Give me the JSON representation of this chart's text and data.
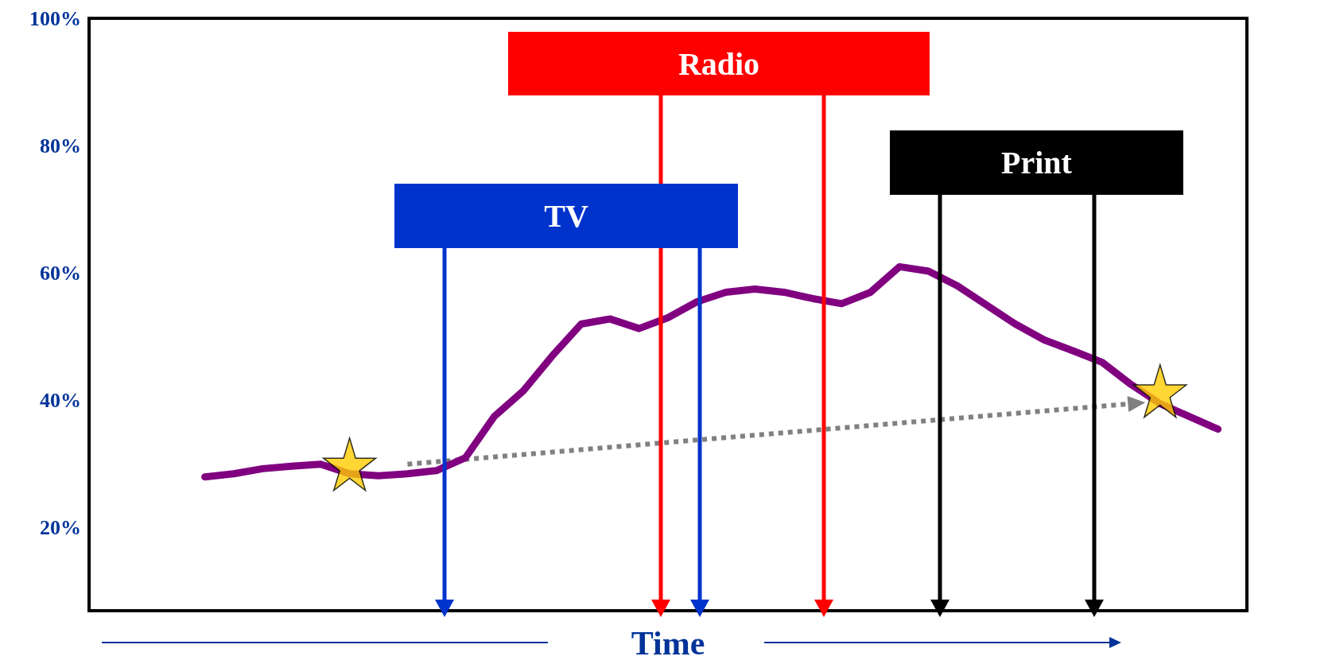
{
  "chart_data": {
    "type": "line",
    "xlabel": "Time",
    "tick_labels": "y",
    "grid": false,
    "categories": [
      null,
      null,
      null,
      null,
      null,
      null,
      null,
      null,
      null,
      null,
      null,
      null,
      null,
      null,
      null,
      null,
      null,
      null,
      null,
      null,
      null,
      null,
      null,
      null,
      null,
      null,
      null,
      null,
      null,
      null,
      null,
      null,
      null,
      null,
      null,
      null,
      null,
      null,
      null,
      null,
      null
    ],
    "ylim": [
      7,
      100
    ],
    "yticks": [
      {
        "value": 20,
        "label": "20%"
      },
      {
        "value": 40,
        "label": "40%"
      },
      {
        "value": 60,
        "label": "60%"
      },
      {
        "value": 80,
        "label": "80%"
      },
      {
        "value": 100,
        "label": "100%"
      }
    ],
    "annotations": [
      "TV",
      "Radio",
      "Print"
    ],
    "series": [
      {
        "color": "#800080",
        "marker": "none",
        "line_style": "solid",
        "values": [
          null,
          null,
          null,
          null,
          28,
          28.5,
          29.3,
          29.7,
          30,
          28.5,
          28.2,
          28.5,
          29,
          31,
          37.5,
          41.5,
          47,
          52,
          52.8,
          51.3,
          53,
          55.5,
          57,
          57.5,
          57,
          56,
          55.2,
          57,
          61,
          60.3,
          58,
          55,
          52,
          49.5,
          47.8,
          46,
          42.5,
          39.5,
          37.5,
          35.5,
          null
        ]
      },
      {
        "color": "#808080",
        "line_style": "dotted",
        "values": [
          null,
          null,
          null,
          null,
          null,
          null,
          null,
          null,
          null,
          null,
          null,
          30,
          null,
          null,
          null,
          null,
          null,
          null,
          null,
          null,
          null,
          null,
          null,
          null,
          null,
          null,
          null,
          null,
          null,
          null,
          null,
          null,
          null,
          null,
          null,
          null,
          39.5,
          null,
          null,
          null,
          null
        ]
      },
      {
        "type": "scatter",
        "color": "#ffcc00",
        "marker": "star",
        "values": [
          null,
          null,
          null,
          null,
          null,
          null,
          null,
          null,
          null,
          30,
          null,
          null,
          null,
          null,
          null,
          null,
          null,
          null,
          null,
          null,
          null,
          null,
          null,
          null,
          null,
          null,
          null,
          null,
          null,
          null,
          null,
          null,
          null,
          null,
          null,
          null,
          null,
          41.5,
          null,
          null,
          null
        ]
      }
    ]
  }
}
